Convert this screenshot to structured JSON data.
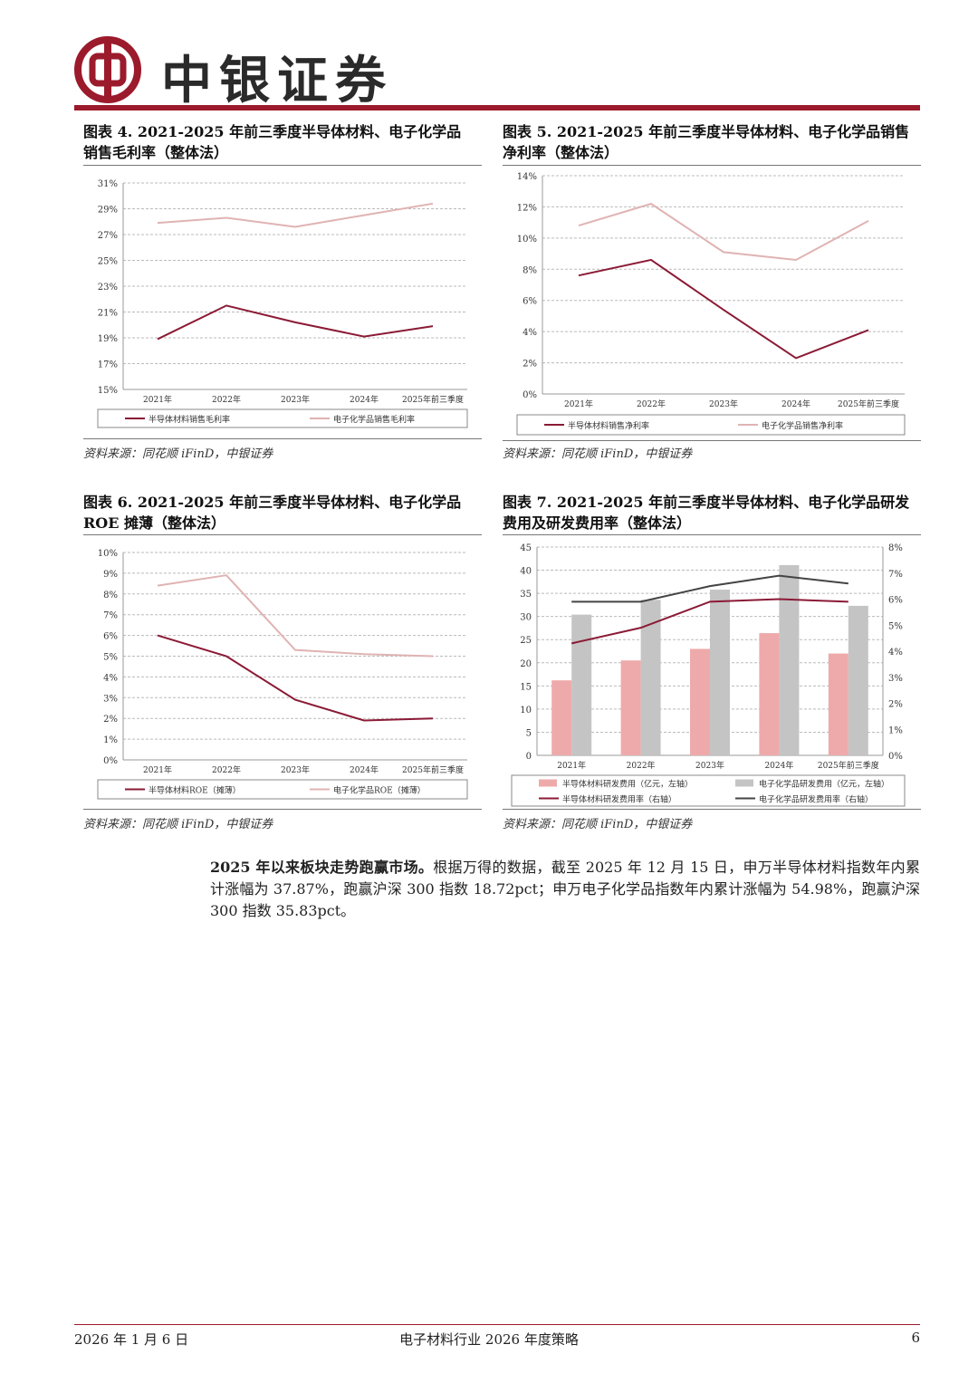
{
  "header": {
    "brand": "中银证券"
  },
  "colors": {
    "brand_red": "#9b1a2b",
    "semi": "#8b1a35",
    "chem": "#e0b3b3",
    "semi_bar": "#eeaaaa",
    "chem_bar": "#c4c4c4",
    "chem_rate_line": "#444444"
  },
  "charts": {
    "c4": {
      "label": "图表 4.",
      "title_line1": "2021-2025 年前三季度半导体材料、电子化学品",
      "title_line2": "销售毛利率（整体法）",
      "source": "资料来源：同花顺 iFinD，中银证券"
    },
    "c5": {
      "label": "图表 5.",
      "title_line1": "2021-2025 年前三季度半导体材料、电子化学品销售",
      "title_line2": "净利率（整体法）",
      "source": "资料来源：同花顺 iFinD，中银证券"
    },
    "c6": {
      "label": "图表 6.",
      "title_line1": "2021-2025 年前三季度半导体材料、电子化学品",
      "title_line2": "ROE 摊薄（整体法）",
      "source": "资料来源：同花顺 iFinD，中银证券"
    },
    "c7": {
      "label": "图表 7.",
      "title_line1": "2021-2025 年前三季度半导体材料、电子化学品研发",
      "title_line2": "费用及研发费用率（整体法）",
      "source": "资料来源：同花顺 iFinD，中银证券"
    }
  },
  "paragraph": {
    "lead": "2025 年以来板块走势跑赢市场。",
    "body": "根据万得的数据，截至 2025 年 12 月 15 日，申万半导体材料指数年内累计涨幅为 37.87%，跑赢沪深 300 指数 18.72pct；申万电子化学品指数年内累计涨幅为 54.98%，跑赢沪深 300 指数 35.83pct。"
  },
  "footer": {
    "date": "2026 年 1 月 6 日",
    "title": "电子材料行业 2026 年度策略",
    "page": "6"
  },
  "chart_data": [
    {
      "id": "c4",
      "type": "line",
      "categories": [
        "2021年",
        "2022年",
        "2023年",
        "2024年",
        "2025年前三季度"
      ],
      "ylim": [
        15,
        31
      ],
      "yticks": [
        15,
        17,
        19,
        21,
        23,
        25,
        27,
        29,
        31
      ],
      "yunit": "%",
      "series": [
        {
          "name": "半导体材料销售毛利率",
          "values": [
            18.9,
            21.5,
            20.2,
            19.1,
            19.9
          ]
        },
        {
          "name": "电子化学品销售毛利率",
          "values": [
            27.9,
            28.3,
            27.6,
            28.5,
            29.4
          ]
        }
      ],
      "legend": "bottom"
    },
    {
      "id": "c5",
      "type": "line",
      "categories": [
        "2021年",
        "2022年",
        "2023年",
        "2024年",
        "2025年前三季度"
      ],
      "ylim": [
        0,
        14
      ],
      "yticks": [
        0,
        2,
        4,
        6,
        8,
        10,
        12,
        14
      ],
      "yunit": "%",
      "series": [
        {
          "name": "半导体材料销售净利率",
          "values": [
            7.6,
            8.6,
            5.4,
            2.3,
            4.1
          ]
        },
        {
          "name": "电子化学品销售净利率",
          "values": [
            10.8,
            12.2,
            9.1,
            8.6,
            11.1
          ]
        }
      ],
      "legend": "bottom"
    },
    {
      "id": "c6",
      "type": "line",
      "categories": [
        "2021年",
        "2022年",
        "2023年",
        "2024年",
        "2025年前三季度"
      ],
      "ylim": [
        0,
        10
      ],
      "yticks": [
        0,
        1,
        2,
        3,
        4,
        5,
        6,
        7,
        8,
        9,
        10
      ],
      "yunit": "%",
      "series": [
        {
          "name": "半导体材料ROE（摊薄）",
          "values": [
            6.0,
            5.0,
            2.9,
            1.9,
            2.0
          ]
        },
        {
          "name": "电子化学品ROE（摊薄）",
          "values": [
            8.4,
            8.9,
            5.3,
            5.1,
            5.0
          ]
        }
      ],
      "legend": "bottom"
    },
    {
      "id": "c7",
      "type": "bar",
      "categories": [
        "2021年",
        "2022年",
        "2023年",
        "2024年",
        "2025年前三季度"
      ],
      "ylim": [
        0,
        45
      ],
      "yticks": [
        0,
        5,
        10,
        15,
        20,
        25,
        30,
        35,
        40,
        45
      ],
      "y2lim": [
        0,
        8
      ],
      "y2ticks": [
        0,
        1,
        2,
        3,
        4,
        5,
        6,
        7,
        8
      ],
      "y2unit": "%",
      "series": [
        {
          "name": "半导体材料研发费用（亿元，左轴）",
          "kind": "bar",
          "axis": "left",
          "values": [
            16.2,
            20.5,
            23.0,
            26.4,
            22.0
          ]
        },
        {
          "name": "电子化学品研发费用（亿元，左轴）",
          "kind": "bar",
          "axis": "left",
          "values": [
            30.4,
            33.6,
            35.8,
            41.1,
            32.3
          ]
        },
        {
          "name": "半导体材料研发费用率（右轴）",
          "kind": "line",
          "axis": "right",
          "values": [
            4.3,
            4.9,
            5.9,
            6.0,
            5.9
          ]
        },
        {
          "name": "电子化学品研发费用率（右轴）",
          "kind": "line",
          "axis": "right",
          "values": [
            5.9,
            5.9,
            6.5,
            6.9,
            6.6
          ]
        }
      ],
      "legend": "bottom"
    }
  ]
}
